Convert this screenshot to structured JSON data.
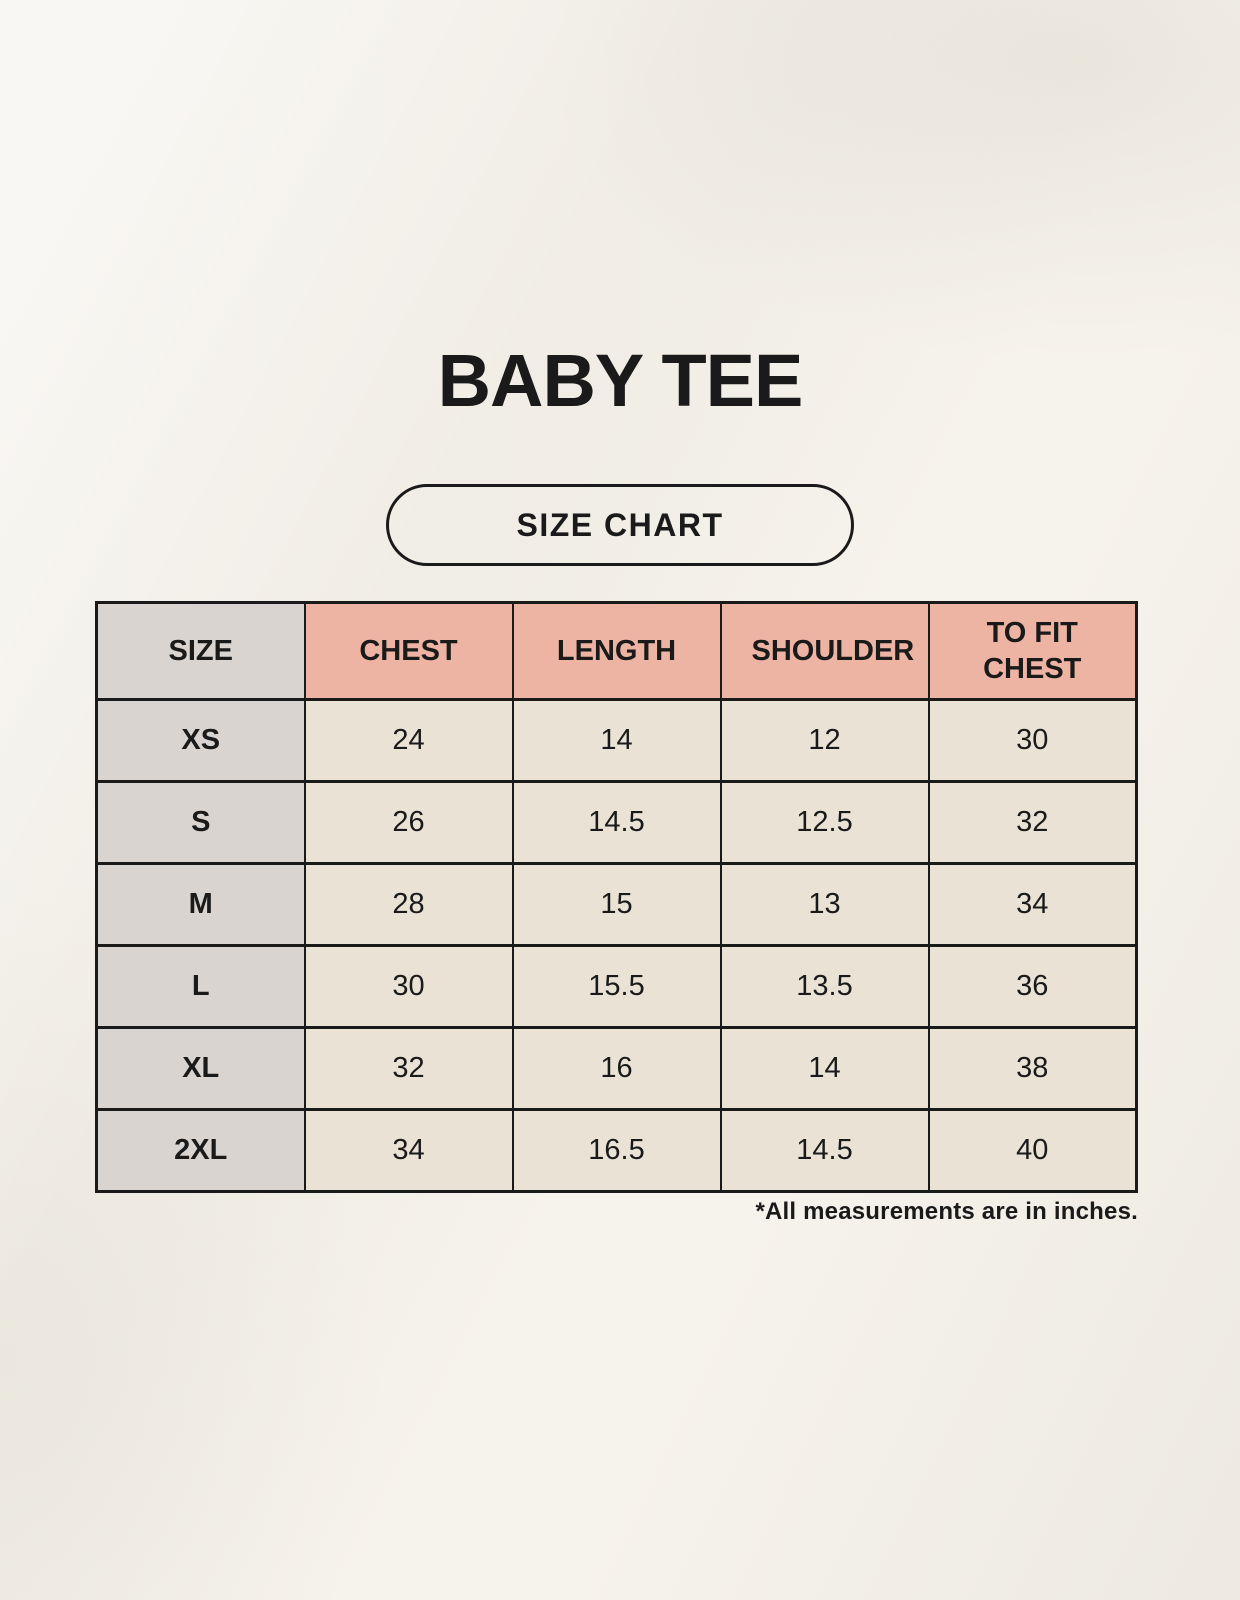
{
  "page": {
    "title": "BABY TEE",
    "badge_label": "SIZE CHART",
    "footnote": "*All measurements are in inches."
  },
  "chart_data": {
    "type": "table",
    "title": "BABY TEE",
    "subtitle": "SIZE CHART",
    "columns": [
      "SIZE",
      "CHEST",
      "LENGTH",
      "SHOULDER",
      "TO FIT CHEST"
    ],
    "rows": [
      [
        "XS",
        "24",
        "14",
        "12",
        "30"
      ],
      [
        "S",
        "26",
        "14.5",
        "12.5",
        "32"
      ],
      [
        "M",
        "28",
        "15",
        "13",
        "34"
      ],
      [
        "L",
        "30",
        "15.5",
        "13.5",
        "36"
      ],
      [
        "XL",
        "32",
        "16",
        "14",
        "38"
      ],
      [
        "2XL",
        "34",
        "16.5",
        "14.5",
        "40"
      ]
    ],
    "units_note": "*All measurements are in inches."
  },
  "colors": {
    "background": "#f6f3ec",
    "header_accent": "#edb4a3",
    "size_column": "#d9d4d0",
    "cell": "#eae3d5",
    "border": "#1a1a1a",
    "text": "#1a1a1a"
  }
}
